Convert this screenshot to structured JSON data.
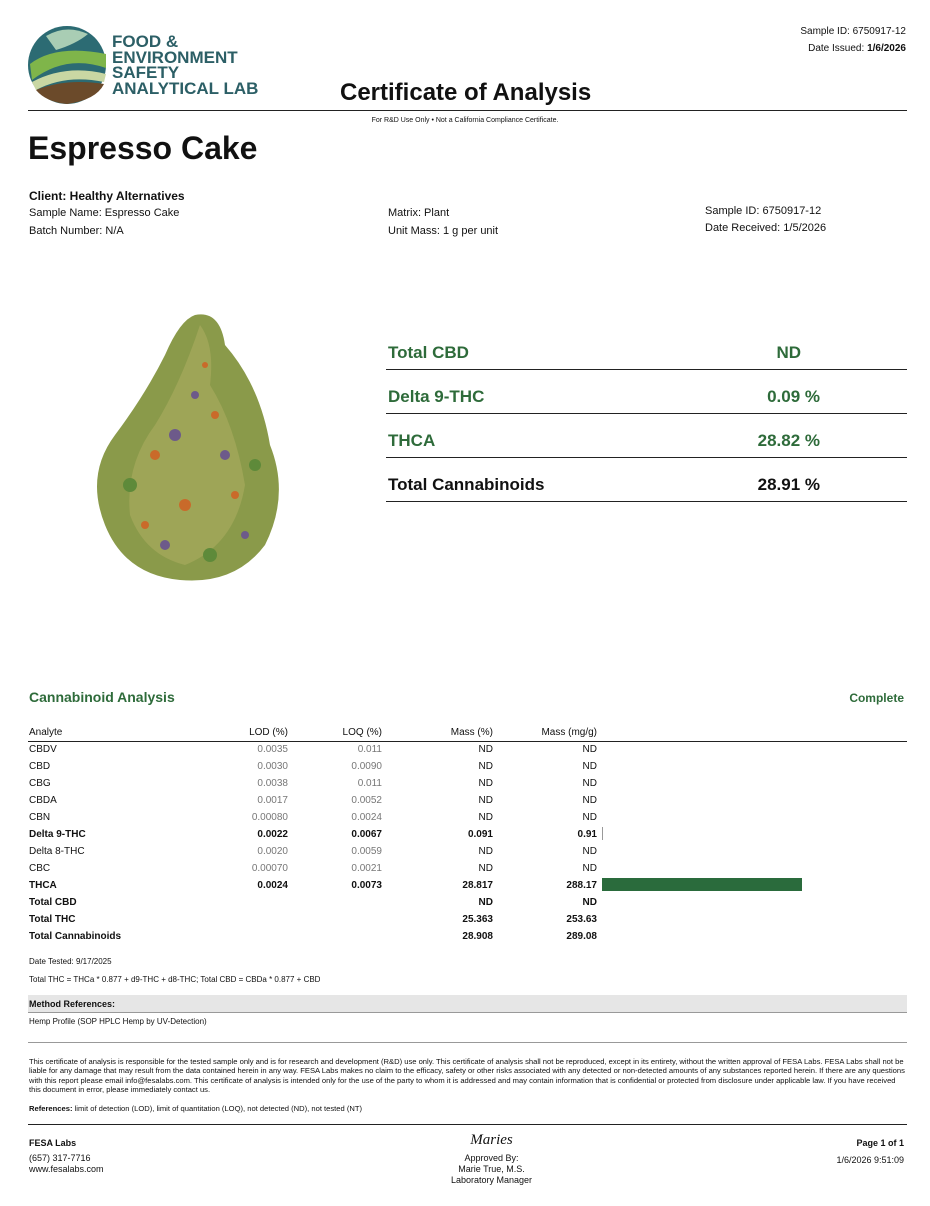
{
  "logo": {
    "lines": [
      "FOOD &",
      "ENVIRONMENT",
      "SAFETY",
      "ANALYTICAL LAB"
    ]
  },
  "header": {
    "sample_id_label": "Sample ID:",
    "sample_id": "6750917-12",
    "date_issued_label": "Date Issued:",
    "date_issued": "1/6/2026",
    "title": "Certificate of Analysis",
    "subtitle": "For R&D Use Only • Not a California Compliance Certificate."
  },
  "product": {
    "name": "Espresso Cake",
    "client": "Client: Healthy Alternatives",
    "sample_name": "Sample Name: Espresso Cake",
    "batch": "Batch Number: N/A",
    "matrix": "Matrix: Plant",
    "unit_mass": "Unit Mass: 1 g per unit",
    "sample_id_label": "Sample ID:",
    "sample_id": "6750917-12",
    "date_received_label": "Date Received:",
    "date_received": "1/5/2026"
  },
  "summary": [
    {
      "label": "Total CBD",
      "value": "ND"
    },
    {
      "label": "Delta 9-THC",
      "value": "0.09 %"
    },
    {
      "label": "THCA",
      "value": "28.82 %"
    },
    {
      "label": "Total Cannabinoids",
      "value": "28.91 %"
    }
  ],
  "analysis": {
    "title": "Cannabinoid Analysis",
    "status": "Complete",
    "table": {
      "header": [
        "Analyte",
        "LOD (%)",
        "LOQ (%)",
        "Mass (%)",
        "Mass (mg/g)"
      ],
      "rows": [
        [
          "CBDV",
          "0.0035",
          "0.011",
          "ND",
          "ND"
        ],
        [
          "CBD",
          "0.0030",
          "0.0090",
          "ND",
          "ND"
        ],
        [
          "CBG",
          "0.0038",
          "0.011",
          "ND",
          "ND"
        ],
        [
          "CBDA",
          "0.0017",
          "0.0052",
          "ND",
          "ND"
        ],
        [
          "CBN",
          "0.00080",
          "0.0024",
          "ND",
          "ND"
        ],
        [
          "Delta 9-THC",
          "0.0022",
          "0.0067",
          "0.091",
          "0.91"
        ],
        [
          "Delta 8-THC",
          "0.0020",
          "0.0059",
          "ND",
          "ND"
        ],
        [
          "CBC",
          "0.00070",
          "0.0021",
          "ND",
          "ND"
        ],
        [
          "THCA",
          "0.0024",
          "0.0073",
          "28.817",
          "288.17"
        ],
        [
          "Total CBD",
          "",
          "",
          "ND",
          "ND"
        ],
        [
          "Total THC",
          "",
          "",
          "25.363",
          "253.63"
        ],
        [
          "Total Cannabinoids",
          "",
          "",
          "28.908",
          "289.08"
        ]
      ]
    },
    "date_tested": "Date Tested: 9/17/2025",
    "formula": "Total THC = THCa * 0.877 + d9-THC + d8-THC; Total CBD = CBDa * 0.877 + CBD"
  },
  "methods": {
    "title": "Method References:",
    "text": "Hemp Profile (SOP HPLC Hemp by UV-Detection)"
  },
  "disclaimer": "This certificate of analysis is responsible for the tested sample only and is for research and development (R&D) use only. This certificate of analysis shall not be reproduced, except in its entirety, without the written approval of FESA Labs. FESA Labs shall not be liable for any damage that may result from the data contained herein in any way. FESA Labs makes no claim to the efficacy, safety or other risks associated with any detected or non-detected amounts of any substances reported herein. If there are any questions with this report please email info@fesalabs.com. This certificate of analysis is intended only for the use of the party to whom it is addressed and may contain information that is confidential or protected from disclosure under applicable law. If you have received this document in error, please immediately contact us.",
  "references": {
    "label": "References:",
    "text": "limit of detection (LOD), limit of quantitation (LOQ), not detected (ND), not tested (NT)"
  },
  "footer": {
    "company": "FESA Labs",
    "phone": "(657) 317-7716",
    "website": "www.fesalabs.com",
    "signature": "Maries",
    "approved": "Approved By:",
    "approver": "Marie True, M.S.",
    "role": "Laboratory Manager",
    "page": "Page 1 of 1",
    "timestamp": "1/6/2026 9:51:09"
  }
}
